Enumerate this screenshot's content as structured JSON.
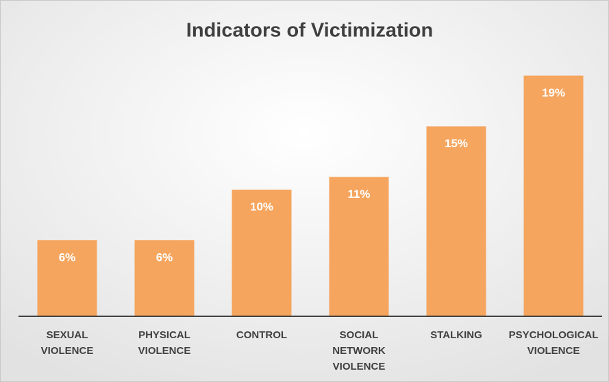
{
  "chart_data": {
    "type": "bar",
    "title": "Indicators of Victimization",
    "categories": [
      "SEXUAL VIOLENCE",
      "PHYSICAL VIOLENCE",
      "CONTROL",
      "SOCIAL NETWORK VIOLENCE",
      "STALKING",
      "PSYCHOLOGICAL VIOLENCE"
    ],
    "values": [
      6,
      6,
      10,
      11,
      15,
      19
    ],
    "value_labels": [
      "6%",
      "6%",
      "10%",
      "11%",
      "15%",
      "19%"
    ],
    "color": "#f5a55e"
  }
}
